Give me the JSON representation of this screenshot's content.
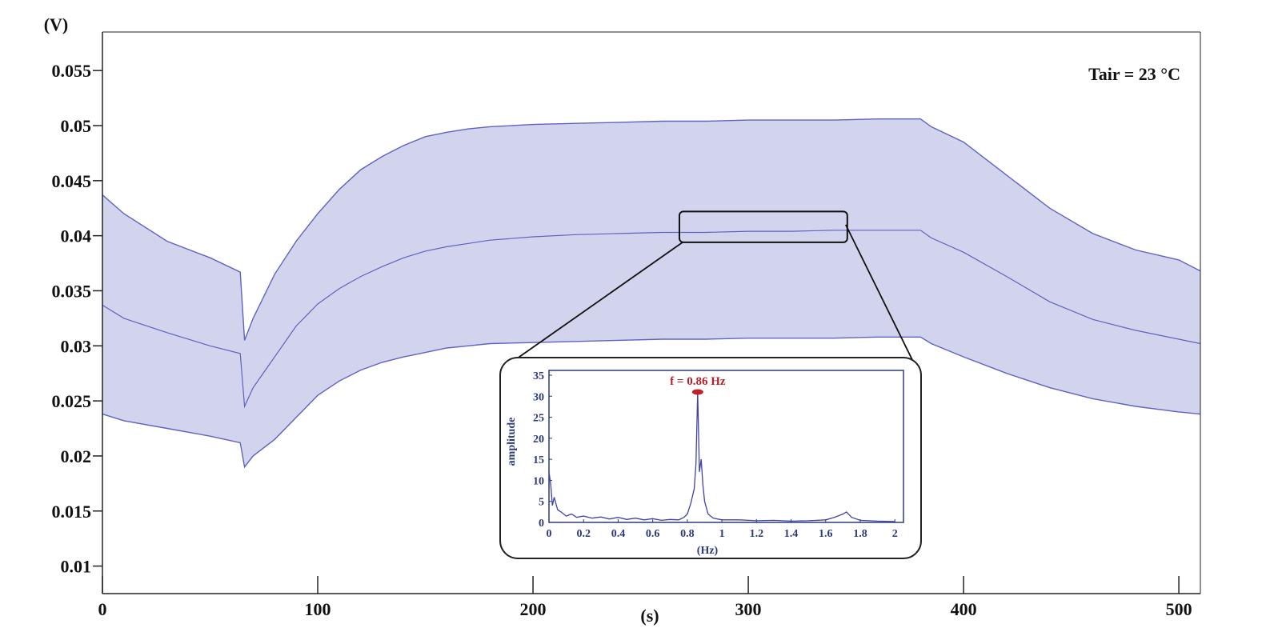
{
  "chart_data": [
    {
      "type": "area",
      "title": "",
      "xlabel": "(s)",
      "ylabel": "(V)",
      "xlim": [
        0,
        510
      ],
      "ylim": [
        0.0075,
        0.0585
      ],
      "x_ticks": [
        0,
        100,
        200,
        300,
        400,
        500
      ],
      "x_tick_labels": [
        "0",
        "100",
        "200",
        "300",
        "400",
        "500"
      ],
      "y_ticks": [
        0.01,
        0.015,
        0.02,
        0.025,
        0.03,
        0.035,
        0.04,
        0.045,
        0.05,
        0.055
      ],
      "y_tick_labels": [
        "0.01",
        "0.015",
        "0.02",
        "0.025",
        "0.03",
        "0.035",
        "0.04",
        "0.045",
        "0.05",
        "0.055"
      ],
      "annotation": "Tair = 23 °C",
      "grid": false,
      "fill_color": "#c9cce9",
      "line_color": "#5f63bf",
      "series": [
        {
          "role": "upper-envelope",
          "x": [
            0,
            10,
            30,
            50,
            64,
            66,
            70,
            80,
            90,
            100,
            110,
            120,
            130,
            140,
            150,
            160,
            170,
            180,
            200,
            220,
            240,
            260,
            280,
            300,
            320,
            340,
            360,
            380,
            385,
            400,
            420,
            440,
            460,
            480,
            500,
            510
          ],
          "y": [
            0.0437,
            0.042,
            0.0395,
            0.038,
            0.0367,
            0.0305,
            0.0325,
            0.0365,
            0.0395,
            0.042,
            0.0442,
            0.046,
            0.0472,
            0.0482,
            0.049,
            0.0494,
            0.0497,
            0.0499,
            0.0501,
            0.0502,
            0.0503,
            0.0504,
            0.0504,
            0.0505,
            0.0505,
            0.0505,
            0.0506,
            0.0506,
            0.0499,
            0.0485,
            0.0455,
            0.0425,
            0.0402,
            0.0387,
            0.0378,
            0.0368
          ]
        },
        {
          "role": "mean",
          "x": [
            0,
            10,
            30,
            50,
            64,
            66,
            70,
            80,
            90,
            100,
            110,
            120,
            130,
            140,
            150,
            160,
            170,
            180,
            200,
            220,
            240,
            260,
            280,
            300,
            320,
            340,
            360,
            380,
            385,
            400,
            420,
            440,
            460,
            480,
            500,
            510
          ],
          "y": [
            0.0337,
            0.0325,
            0.0312,
            0.03,
            0.0293,
            0.0245,
            0.0262,
            0.029,
            0.0318,
            0.0338,
            0.0352,
            0.0363,
            0.0372,
            0.038,
            0.0386,
            0.039,
            0.0393,
            0.0396,
            0.0399,
            0.0401,
            0.0402,
            0.0403,
            0.0403,
            0.0404,
            0.0404,
            0.0405,
            0.0405,
            0.0405,
            0.0398,
            0.0385,
            0.0363,
            0.034,
            0.0324,
            0.0314,
            0.0306,
            0.0302
          ]
        },
        {
          "role": "lower-envelope",
          "x": [
            0,
            10,
            30,
            50,
            64,
            66,
            70,
            80,
            90,
            100,
            110,
            120,
            130,
            140,
            150,
            160,
            170,
            180,
            200,
            220,
            240,
            260,
            280,
            300,
            320,
            340,
            360,
            380,
            385,
            400,
            420,
            440,
            460,
            480,
            500,
            510
          ],
          "y": [
            0.0238,
            0.0232,
            0.0225,
            0.0218,
            0.0212,
            0.019,
            0.02,
            0.0215,
            0.0235,
            0.0255,
            0.0268,
            0.0278,
            0.0285,
            0.029,
            0.0294,
            0.0298,
            0.03,
            0.0302,
            0.0303,
            0.0304,
            0.0305,
            0.0306,
            0.0306,
            0.0307,
            0.0307,
            0.0307,
            0.0308,
            0.0308,
            0.0302,
            0.029,
            0.0275,
            0.0262,
            0.0252,
            0.0245,
            0.024,
            0.0238
          ]
        }
      ],
      "zoom_box": {
        "x": [
          268,
          346
        ],
        "y": [
          0.0394,
          0.0422
        ]
      }
    },
    {
      "type": "line",
      "title": "",
      "xlabel": "(Hz)",
      "ylabel": "amplitude",
      "xlim": [
        0,
        2.05
      ],
      "ylim": [
        0,
        35
      ],
      "x_ticks": [
        0,
        0.2,
        0.4,
        0.6,
        0.8,
        1,
        1.2,
        1.4,
        1.6,
        1.8,
        2
      ],
      "x_tick_labels": [
        "0",
        "0.2",
        "0.4",
        "0.6",
        "0.8",
        "1",
        "1.2",
        "1.4",
        "1.6",
        "1.8",
        "2"
      ],
      "y_ticks": [
        0,
        5,
        10,
        15,
        20,
        25,
        30,
        35
      ],
      "y_tick_labels": [
        "0",
        "5",
        "10",
        "15",
        "20",
        "25",
        "30",
        "35"
      ],
      "annotation": "f = 0.86 Hz",
      "peak": {
        "x": 0.86,
        "y": 31
      },
      "line_color": "#3f43a8",
      "marker_color": "#c0202a",
      "series": [
        {
          "x": [
            0,
            0.01,
            0.02,
            0.03,
            0.05,
            0.07,
            0.1,
            0.13,
            0.16,
            0.2,
            0.25,
            0.3,
            0.35,
            0.4,
            0.45,
            0.5,
            0.55,
            0.6,
            0.65,
            0.7,
            0.75,
            0.78,
            0.8,
            0.82,
            0.84,
            0.85,
            0.86,
            0.87,
            0.88,
            0.89,
            0.9,
            0.92,
            0.95,
            1.0,
            1.1,
            1.2,
            1.3,
            1.4,
            1.5,
            1.6,
            1.65,
            1.7,
            1.72,
            1.75,
            1.8,
            1.9,
            2.0
          ],
          "y": [
            12,
            9,
            4,
            6,
            3,
            2.5,
            1.5,
            2,
            1.2,
            1.5,
            1,
            1.3,
            0.8,
            1.2,
            0.7,
            1,
            0.6,
            0.9,
            0.5,
            0.7,
            0.6,
            1.2,
            2,
            4.5,
            8,
            14,
            31,
            12,
            15,
            9,
            5,
            2,
            1,
            0.6,
            0.6,
            0.4,
            0.5,
            0.3,
            0.4,
            0.6,
            1.2,
            2,
            2.5,
            1.2,
            0.5,
            0.3,
            0.2
          ]
        }
      ]
    }
  ]
}
